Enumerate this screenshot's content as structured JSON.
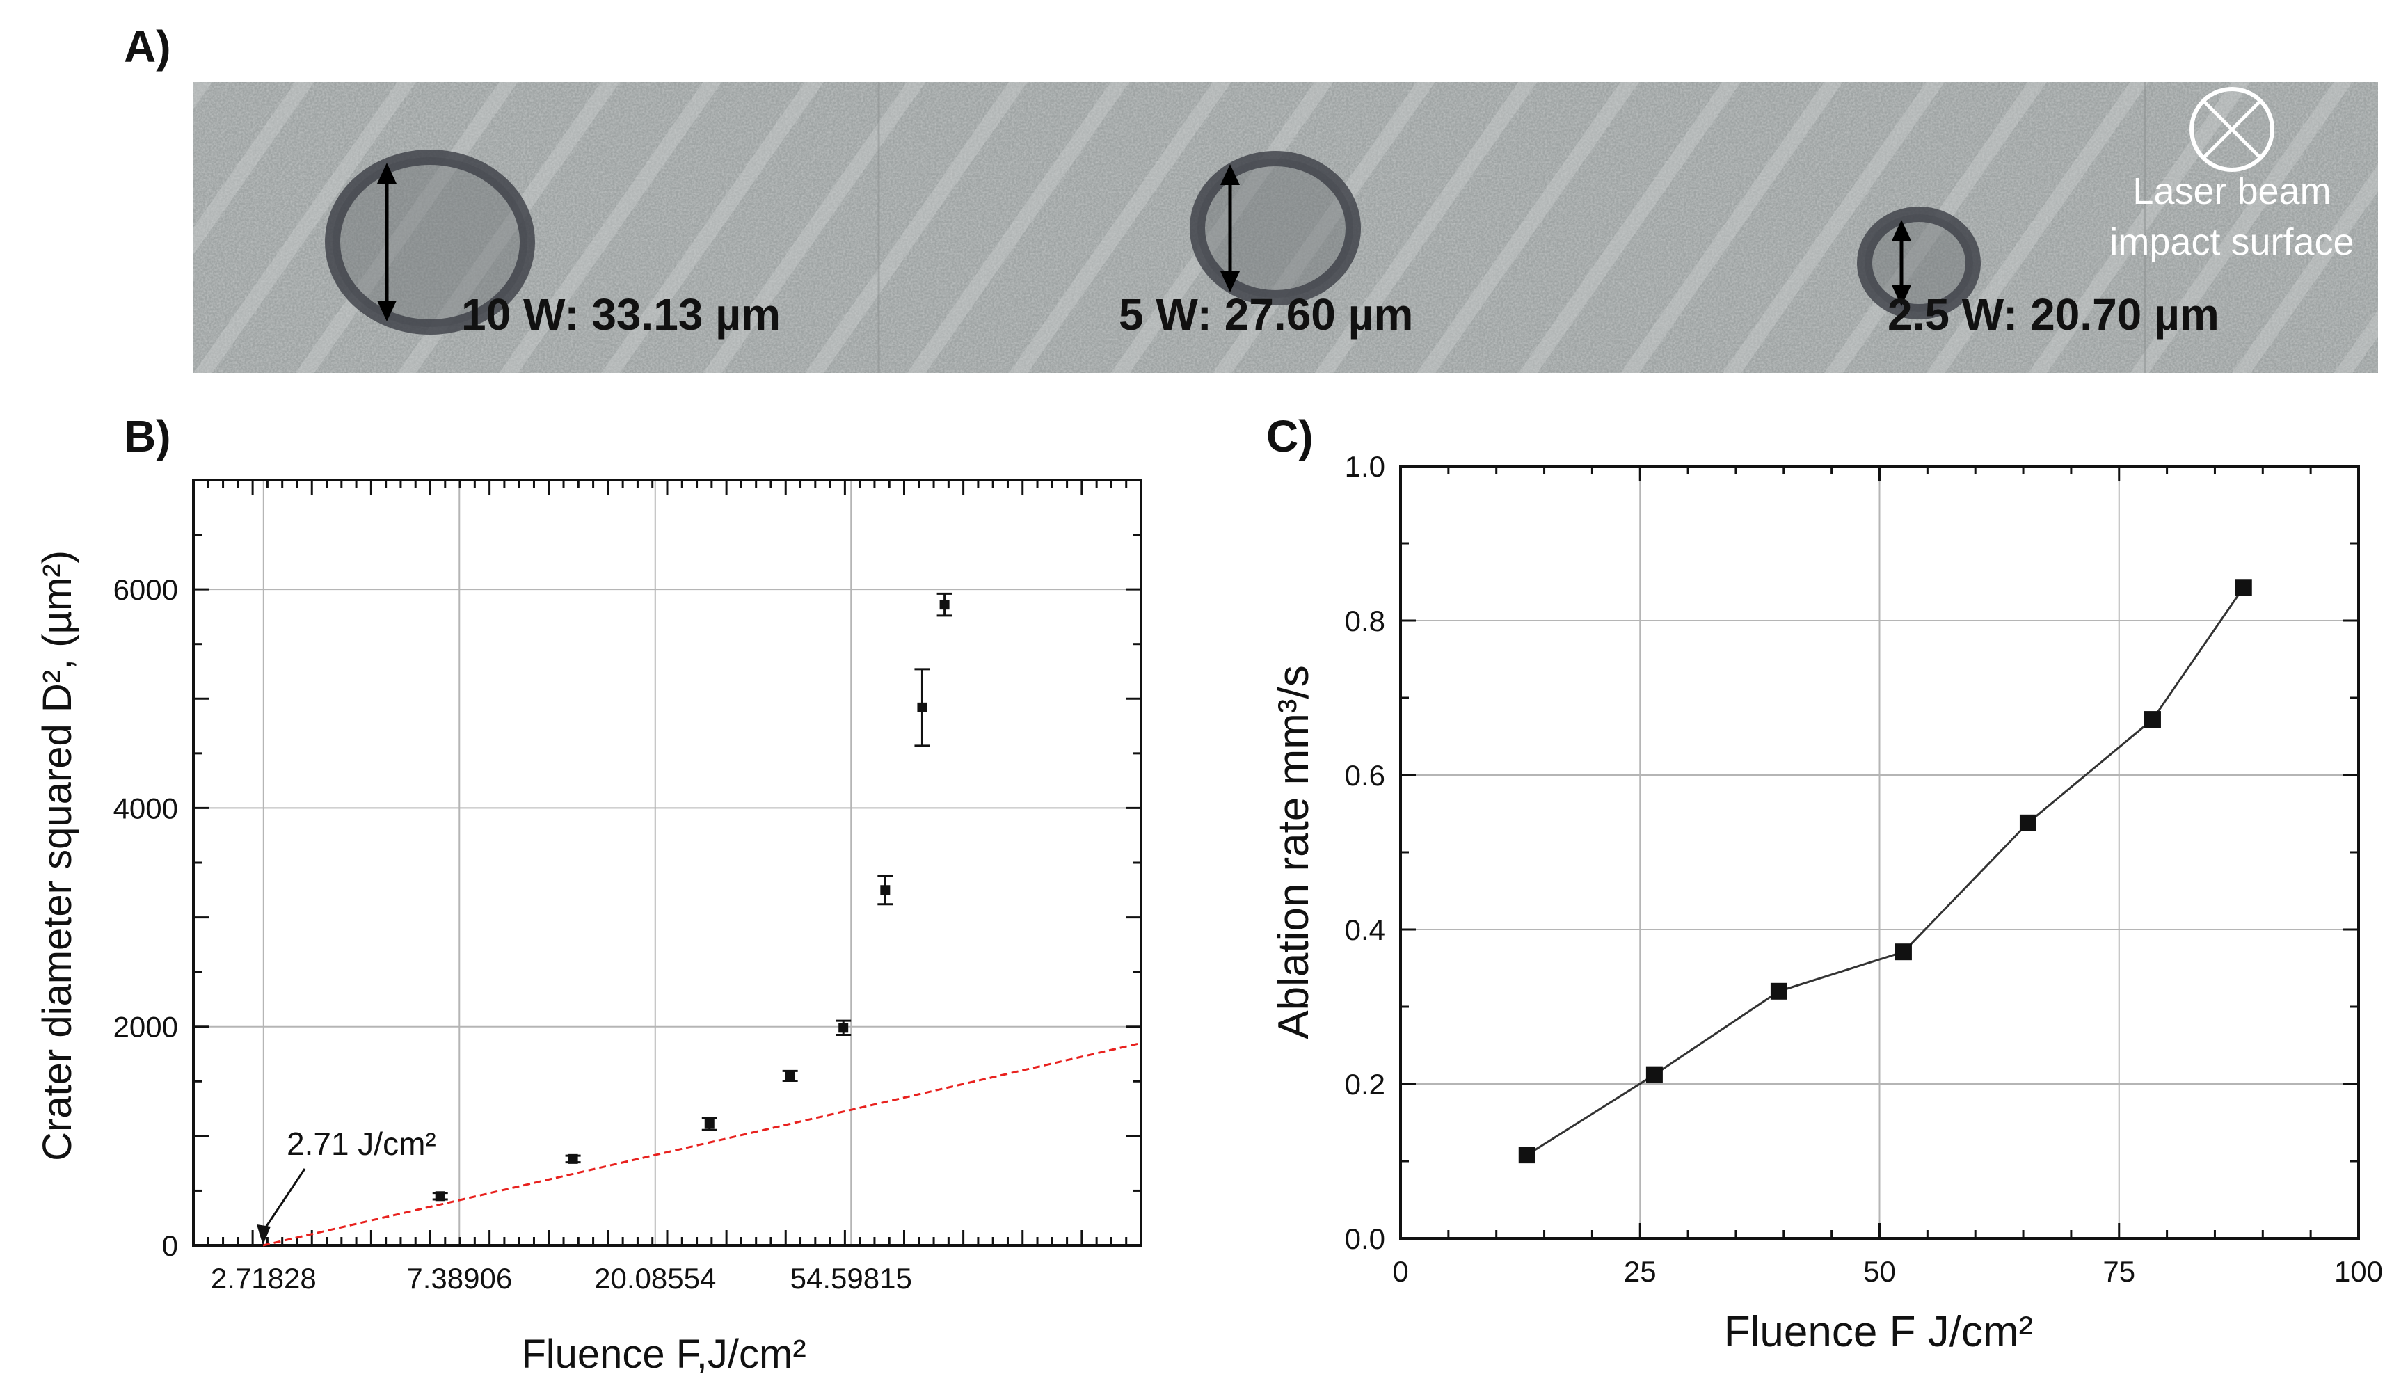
{
  "panels": {
    "a_label": "A)",
    "b_label": "B)",
    "c_label": "C)"
  },
  "micrograph": {
    "craters": [
      {
        "label": "10 W: 33.13 µm"
      },
      {
        "label": "5 W: 27.60 µm"
      },
      {
        "label": "2.5 W: 20.70 µm"
      }
    ],
    "legend_line1": "Laser beam",
    "legend_line2": "impact surface",
    "colors": {
      "background": "#9aa0a0",
      "crater": "#3c3e46",
      "text": "#111111"
    }
  },
  "chart_data": [
    {
      "type": "scatter",
      "xscale": "log",
      "xlabel": "Fluence  F,J/cm²",
      "ylabel": "Crater diameter squared D², (µm²)",
      "xlim": [
        1.9,
        240
      ],
      "ylim": [
        0,
        7000
      ],
      "xticks": [
        {
          "value": 2.71828,
          "label": "2.71828"
        },
        {
          "value": 7.38906,
          "label": "7.38906"
        },
        {
          "value": 20.08554,
          "label": "20.08554"
        },
        {
          "value": 54.59815,
          "label": "54.59815"
        }
      ],
      "yticks": [
        0,
        2000,
        4000,
        6000
      ],
      "grid": true,
      "points": [
        {
          "x": 6.7,
          "y": 450,
          "err": 30
        },
        {
          "x": 13.2,
          "y": 790,
          "err": 30
        },
        {
          "x": 26.5,
          "y": 1110,
          "err": 55
        },
        {
          "x": 40.0,
          "y": 1550,
          "err": 45
        },
        {
          "x": 52.5,
          "y": 1990,
          "err": 65
        },
        {
          "x": 65.0,
          "y": 3250,
          "err": 130
        },
        {
          "x": 78.5,
          "y": 4920,
          "err": 350
        },
        {
          "x": 88.0,
          "y": 5860,
          "err": 100
        }
      ],
      "fit_line": {
        "x": [
          2.71,
          240
        ],
        "y": [
          0,
          1850
        ],
        "color": "#e8211e"
      },
      "annotation": {
        "text": "2.71 J/cm²",
        "x": 2.71,
        "y": 0
      }
    },
    {
      "type": "line",
      "xlabel": "Fluence F  J/cm²",
      "ylabel": "Ablation rate mm³/s",
      "xlim": [
        0,
        100
      ],
      "ylim": [
        0,
        1.0
      ],
      "xticks": [
        0,
        25,
        50,
        75,
        100
      ],
      "yticks": [
        "0.0",
        "0.2",
        "0.4",
        "0.6",
        "0.8",
        "1.0"
      ],
      "grid": true,
      "x": [
        13.2,
        26.5,
        39.5,
        52.5,
        65.5,
        78.5,
        88.0
      ],
      "y": [
        0.108,
        0.212,
        0.32,
        0.371,
        0.538,
        0.672,
        0.843
      ]
    }
  ]
}
